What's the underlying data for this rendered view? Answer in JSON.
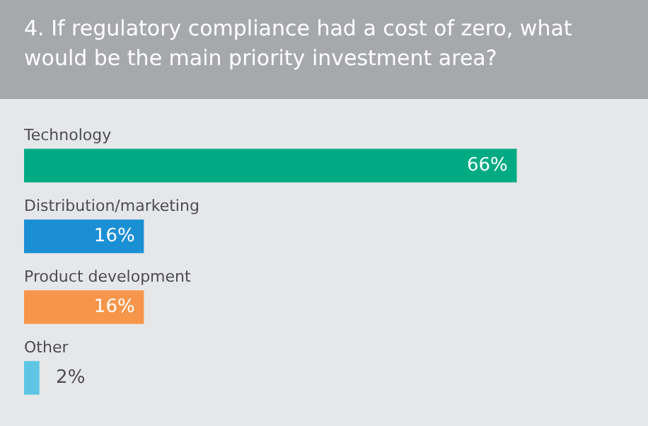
{
  "chart_data": {
    "type": "bar",
    "orientation": "horizontal",
    "title": "4. If regulatory compliance had a cost of zero, what would be the main priority investment area?",
    "categories": [
      "Technology",
      "Distribution/marketing",
      "Product development",
      "Other"
    ],
    "values": [
      66,
      16,
      16,
      2
    ],
    "value_labels": [
      "66%",
      "16%",
      "16%",
      "2%"
    ],
    "colors": [
      "#00ab84",
      "#1b8fd4",
      "#f7964b",
      "#5ec6e4"
    ],
    "legend": false
  }
}
